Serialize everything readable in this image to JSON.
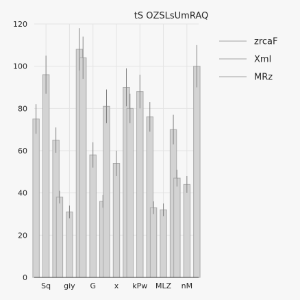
{
  "chart_data": {
    "type": "bar",
    "title": "tS OZSLsUmRAQ",
    "xlabel": "",
    "ylabel": "",
    "categories": [
      "Sq",
      "giy",
      "G",
      "x",
      "kPw",
      "MLZ",
      "nM"
    ],
    "series": [
      {
        "name": "zrcaF",
        "values": [
          75,
          38,
          104,
          81,
          80,
          33,
          47
        ],
        "errors": [
          7,
          3,
          10,
          8,
          7,
          3,
          4
        ]
      },
      {
        "name": "Xml",
        "values": [
          96,
          31,
          58,
          54,
          88,
          32,
          44
        ],
        "errors": [
          9,
          3,
          6,
          6,
          8,
          3,
          4
        ]
      },
      {
        "name": "MRz",
        "values": [
          65,
          108,
          36,
          90,
          76,
          70,
          100
        ],
        "errors": [
          6,
          10,
          3,
          9,
          7,
          7,
          10
        ]
      }
    ],
    "ylim": [
      0,
      120
    ],
    "yticks": [
      0,
      20,
      40,
      60,
      80,
      100,
      120
    ],
    "grid": true,
    "legend_position": "top-right",
    "colors": {
      "bar_fill": "#d3d3d3",
      "bar_edge": "#a9a9a9",
      "error_bar": "#808080",
      "legend_line": "#bdbdbd"
    }
  }
}
